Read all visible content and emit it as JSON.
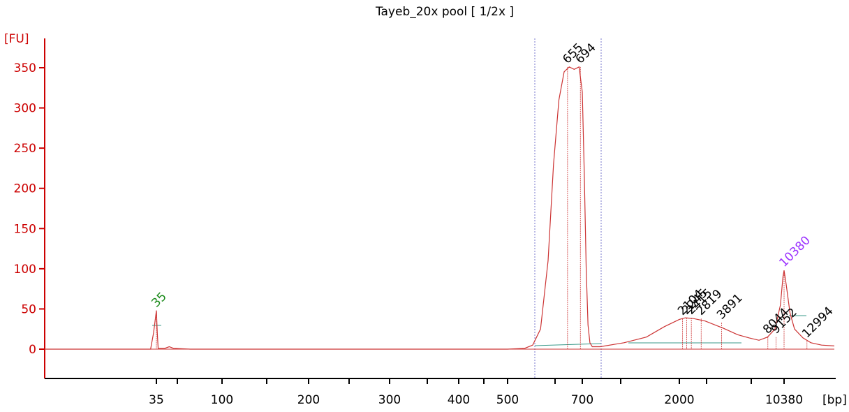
{
  "chart_data": {
    "type": "line",
    "title": "Tayeb_20x pool  [ 1/2x ]",
    "ylabel": "[FU]",
    "xlabel": "[bp]",
    "ylim": [
      -35,
      385
    ],
    "yticks": [
      0,
      50,
      100,
      150,
      200,
      250,
      300,
      350
    ],
    "xtick_labels": [
      "35",
      "100",
      "200",
      "300",
      "400",
      "500",
      "700",
      "2000",
      "10380"
    ],
    "marker_peaks": [
      {
        "label": "35",
        "bp": 35,
        "fu": 48,
        "color": "#1a8a1a"
      },
      {
        "label": "10380",
        "bp": 10380,
        "fu": 98,
        "color": "#9b30ff"
      }
    ],
    "peak_labels": [
      {
        "label": "655",
        "bp": 655,
        "fu": 351
      },
      {
        "label": "694",
        "bp": 694,
        "fu": 351
      },
      {
        "label": "2104",
        "bp": 2104,
        "fu": 38
      },
      {
        "label": "2245",
        "bp": 2245,
        "fu": 39
      },
      {
        "label": "2415",
        "bp": 2415,
        "fu": 39
      },
      {
        "label": "2819",
        "bp": 2819,
        "fu": 38
      },
      {
        "label": "3891",
        "bp": 3891,
        "fu": 33
      },
      {
        "label": "8044",
        "bp": 8044,
        "fu": 15
      },
      {
        "label": "9152",
        "bp": 9152,
        "fu": 15
      },
      {
        "label": "12994",
        "bp": 12994,
        "fu": 10
      }
    ],
    "series": [
      {
        "color": "#cc3333",
        "points": [
          [
            20,
            0
          ],
          [
            34,
            0
          ],
          [
            34.5,
            20
          ],
          [
            35,
            48
          ],
          [
            35.5,
            20
          ],
          [
            36,
            1
          ],
          [
            40,
            1
          ],
          [
            43,
            3
          ],
          [
            46,
            1
          ],
          [
            60,
            0
          ],
          [
            500,
            0
          ],
          [
            540,
            1
          ],
          [
            560,
            5
          ],
          [
            580,
            25
          ],
          [
            600,
            110
          ],
          [
            615,
            230
          ],
          [
            630,
            310
          ],
          [
            645,
            345
          ],
          [
            660,
            351
          ],
          [
            675,
            348
          ],
          [
            690,
            351
          ],
          [
            700,
            320
          ],
          [
            715,
            220
          ],
          [
            730,
            100
          ],
          [
            745,
            30
          ],
          [
            760,
            8
          ],
          [
            780,
            3
          ],
          [
            850,
            3
          ],
          [
            1100,
            8
          ],
          [
            1400,
            15
          ],
          [
            1700,
            28
          ],
          [
            2000,
            37
          ],
          [
            2200,
            39
          ],
          [
            2500,
            38
          ],
          [
            3000,
            35
          ],
          [
            4000,
            26
          ],
          [
            5000,
            18
          ],
          [
            6000,
            14
          ],
          [
            7000,
            11
          ],
          [
            8000,
            15
          ],
          [
            9000,
            25
          ],
          [
            9800,
            55
          ],
          [
            10200,
            90
          ],
          [
            10380,
            98
          ],
          [
            10600,
            80
          ],
          [
            11000,
            45
          ],
          [
            11500,
            25
          ],
          [
            12500,
            14
          ],
          [
            13500,
            8
          ],
          [
            15000,
            5
          ],
          [
            17000,
            4
          ]
        ]
      }
    ]
  }
}
